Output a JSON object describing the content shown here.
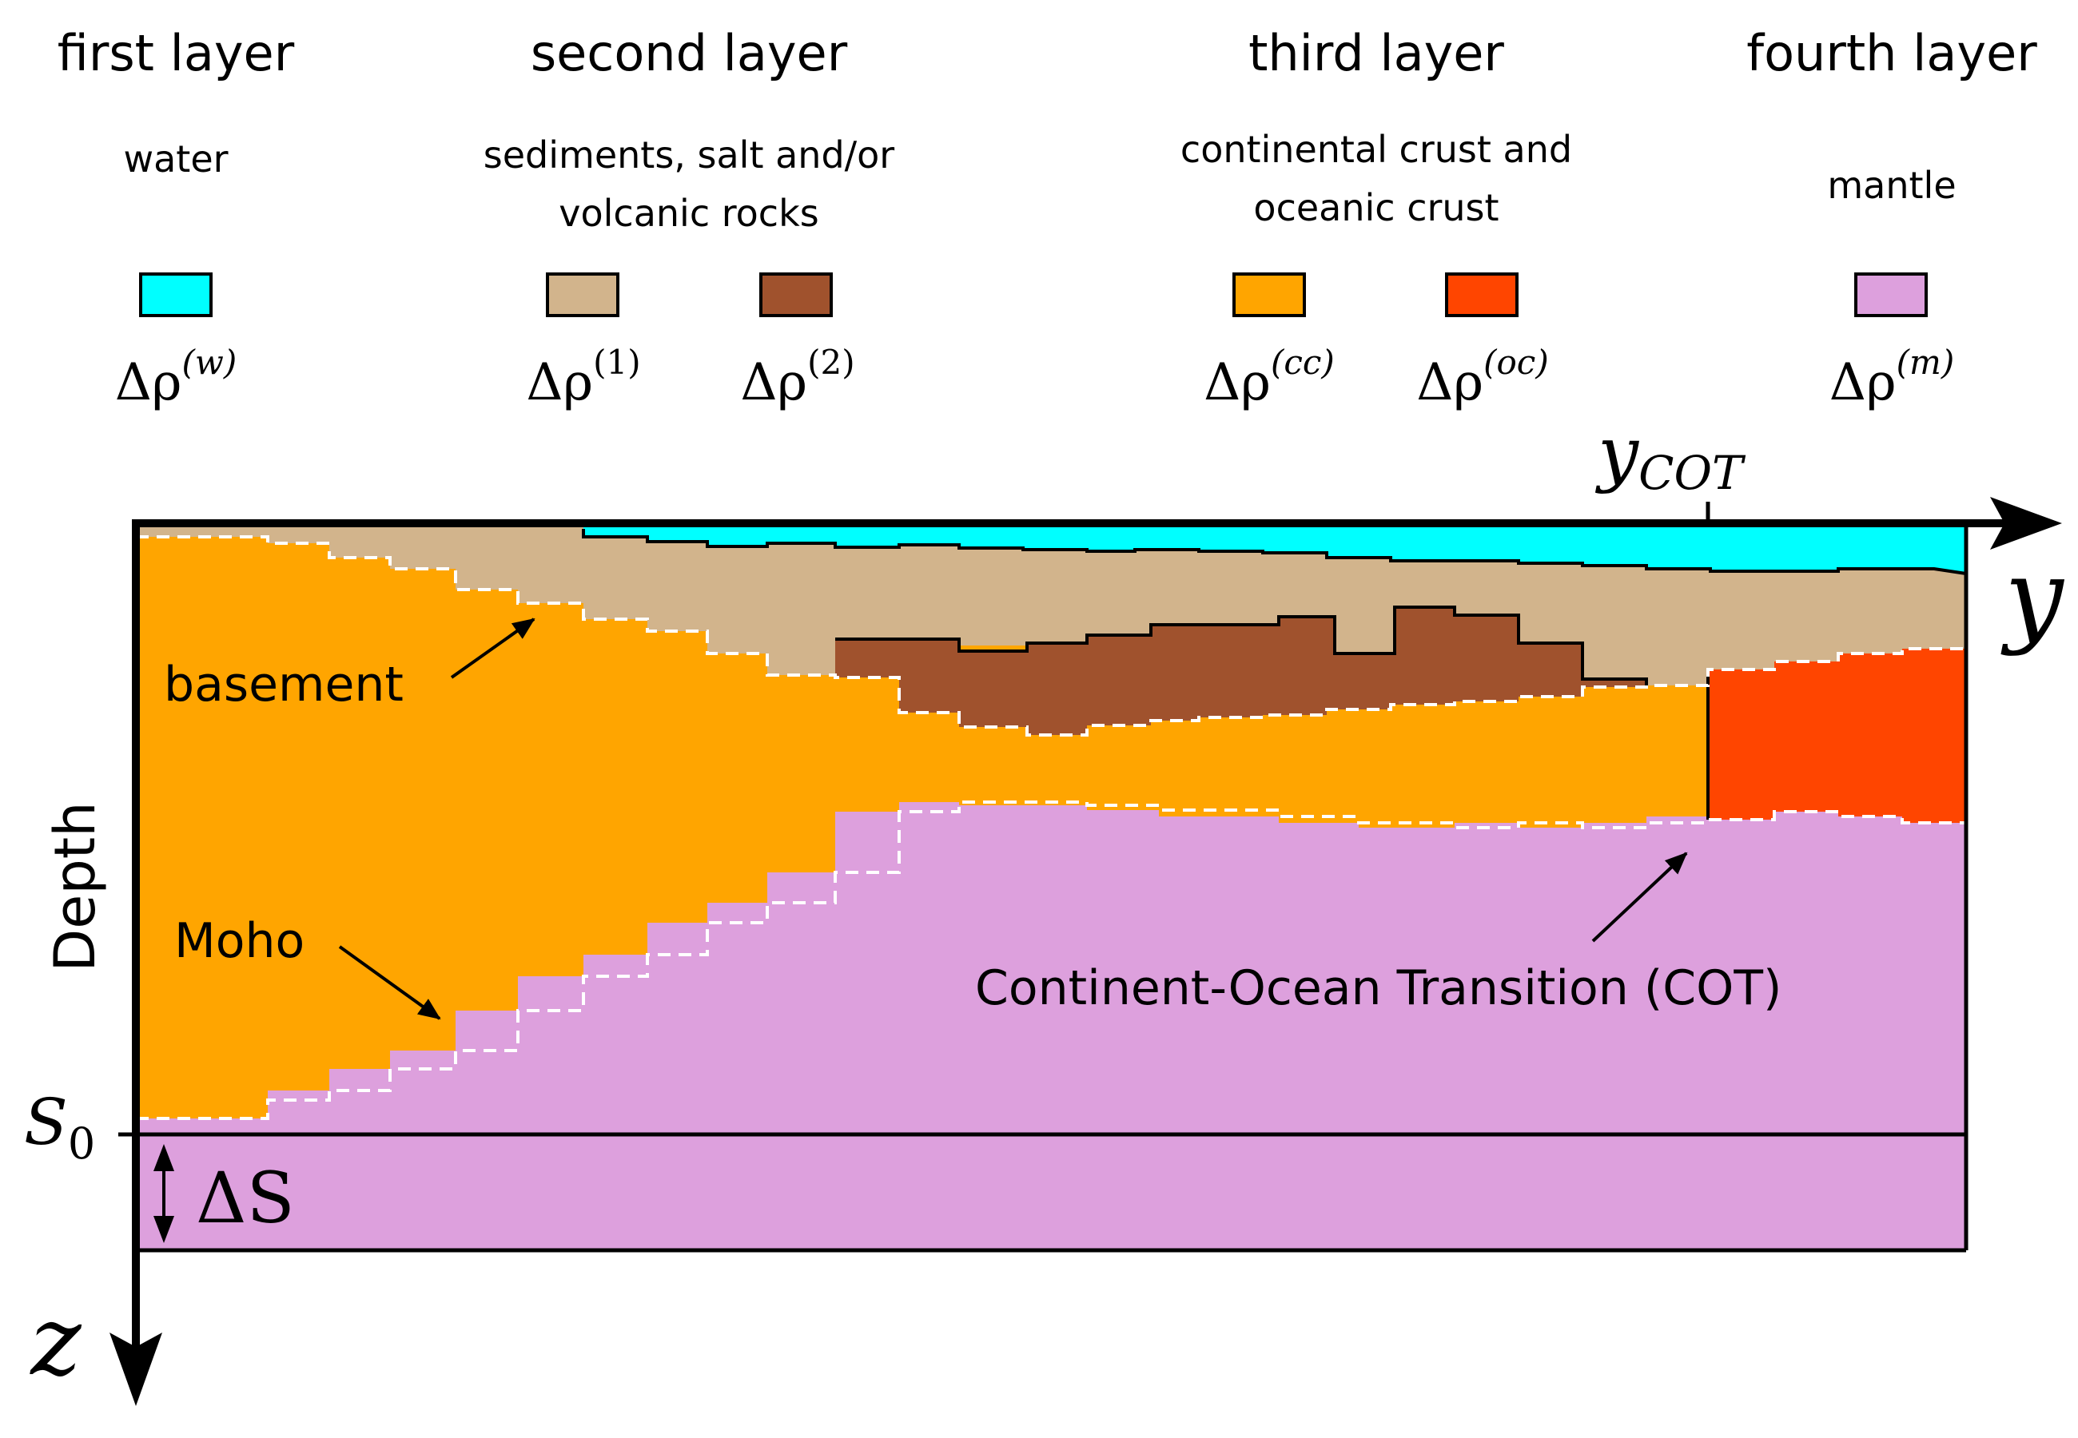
{
  "legend": {
    "layers": [
      {
        "title": "first layer",
        "description": [
          "water"
        ]
      },
      {
        "title": "second layer",
        "description": [
          "sediments, salt and/or",
          "volcanic rocks"
        ]
      },
      {
        "title": "third layer",
        "description": [
          "continental crust and",
          "oceanic crust"
        ]
      },
      {
        "title": "fourth layer",
        "description": [
          "mantle"
        ]
      }
    ],
    "swatches": [
      {
        "id": "water",
        "symbol": "Δρ",
        "sup": "(w)",
        "color": "#00FFFF"
      },
      {
        "id": "sed1",
        "symbol": "Δρ",
        "sup": "(1)",
        "color": "#D2B48C"
      },
      {
        "id": "sed2",
        "symbol": "Δρ",
        "sup": "(2)",
        "color": "#A0522D"
      },
      {
        "id": "cc",
        "symbol": "Δρ",
        "sup": "(cc)",
        "color": "#FFA500"
      },
      {
        "id": "oc",
        "symbol": "Δρ",
        "sup": "(oc)",
        "color": "#FF4500"
      },
      {
        "id": "mantle",
        "symbol": "Δρ",
        "sup": "(m)",
        "color": "#DDA0DD"
      }
    ]
  },
  "labels": {
    "basement": "basement",
    "moho": "Moho",
    "cot": "Continent-Ocean Transition (COT)",
    "depth": "Depth"
  },
  "axes": {
    "y": "y",
    "z": "z",
    "ycot_base": "y",
    "ycot_sub": "COT",
    "s0_base": "S",
    "s0_sub": "0",
    "delta_s": "ΔS"
  }
}
